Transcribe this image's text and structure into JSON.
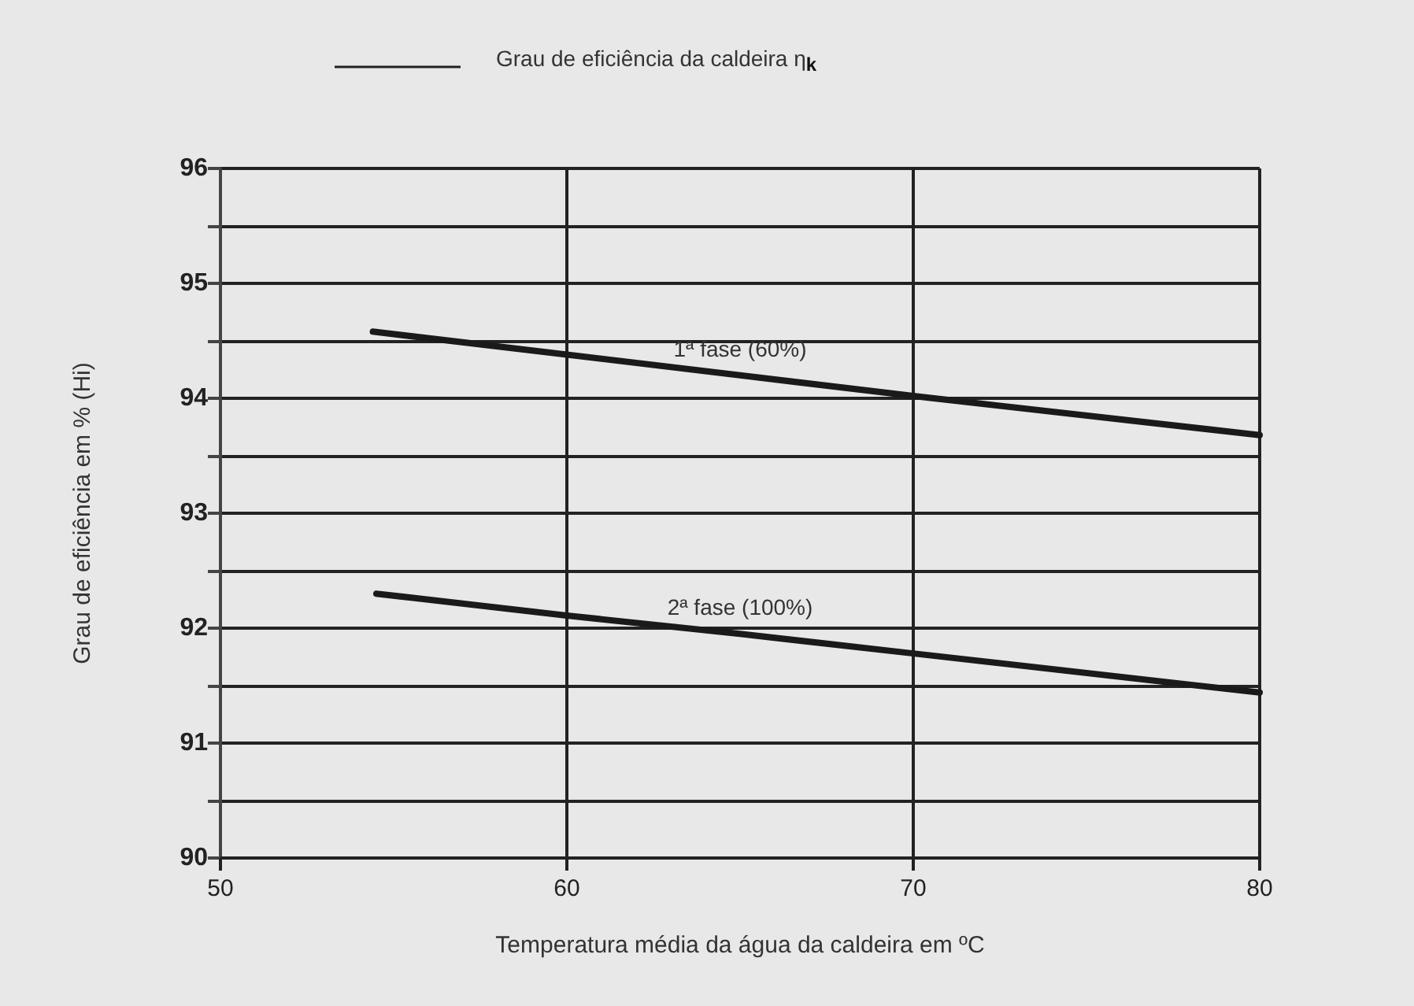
{
  "chart_data": {
    "type": "line",
    "legend_title": "Grau de eficiência da caldeira η$_{k}$",
    "legend": "top",
    "xlabel": "Temperatura média da água da caldeira em ºC",
    "ylabel": "Grau de eficiência em % (Hi)",
    "xlim": [
      50,
      80
    ],
    "xticks": [
      50,
      60,
      70,
      80
    ],
    "ylim": [
      90,
      96
    ],
    "yticks": [
      90,
      {
        "value": 90.5,
        "label": null
      },
      91,
      {
        "value": 91.5,
        "label": null
      },
      92,
      {
        "value": 92.5,
        "label": null
      },
      93,
      {
        "value": 93.5,
        "label": null
      },
      94,
      {
        "value": 94.5,
        "label": null
      },
      95,
      {
        "value": 95.5,
        "label": null
      },
      96
    ],
    "grid": true,
    "marker": "none",
    "line_style": "solid",
    "series": [
      {
        "name": "1ª fase (60%)",
        "color": "#1a1a1a",
        "x": [
          54.4,
          60,
          65,
          70,
          80
        ],
        "values": [
          94.58,
          94.38,
          94.2,
          94.02,
          93.68
        ]
      },
      {
        "name": "2ª fase (100%)",
        "color": "#1a1a1a",
        "x": [
          54.5,
          60,
          65,
          70,
          80
        ],
        "values": [
          92.3,
          92.11,
          91.95,
          91.78,
          91.44
        ]
      }
    ]
  }
}
